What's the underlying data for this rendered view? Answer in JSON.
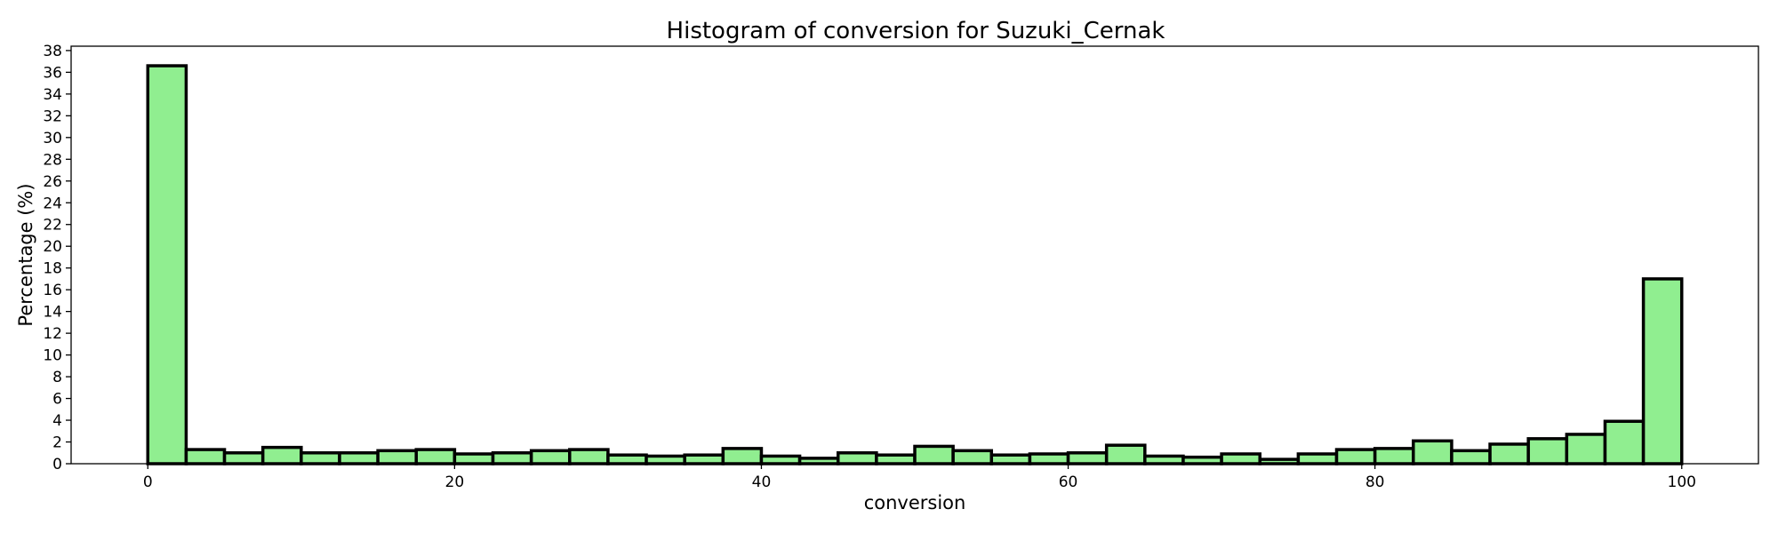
{
  "chart_data": {
    "type": "bar",
    "title": "Histogram of conversion for Suzuki_Cernak",
    "xlabel": "conversion",
    "ylabel": "Percentage (%)",
    "xlim": [
      -5,
      105
    ],
    "ylim": [
      0,
      38.4
    ],
    "xticks": [
      0,
      20,
      40,
      60,
      80,
      100
    ],
    "yticks": [
      0,
      2,
      4,
      6,
      8,
      10,
      12,
      14,
      16,
      18,
      20,
      22,
      24,
      26,
      28,
      30,
      32,
      34,
      36,
      38
    ],
    "bin_width": 2.5,
    "bin_start": 0,
    "values": [
      36.6,
      1.3,
      1.0,
      1.5,
      1.0,
      1.0,
      1.2,
      1.3,
      0.9,
      1.0,
      1.2,
      1.3,
      0.8,
      0.7,
      0.8,
      1.4,
      0.7,
      0.5,
      1.0,
      0.8,
      1.6,
      1.2,
      0.8,
      0.9,
      1.0,
      1.7,
      0.7,
      0.6,
      0.9,
      0.4,
      0.9,
      1.3,
      1.4,
      2.1,
      1.2,
      1.8,
      2.3,
      2.7,
      3.9,
      17.0
    ],
    "grid": false,
    "colors": {
      "bar_fill": "#90ee90",
      "bar_edge": "#000000"
    }
  }
}
